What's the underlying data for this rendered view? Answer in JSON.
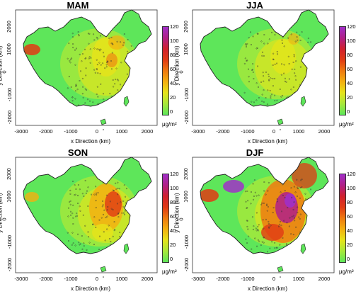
{
  "panels": [
    {
      "title": "MAM",
      "ylabel": "y Direction (km)",
      "xlabel": "x Direction (km)",
      "unit": "μg/m²",
      "colorbar_ticks": [
        "120",
        "100",
        "80",
        "60",
        "40",
        "20",
        "0"
      ],
      "x_ticks": [
        "-3000",
        "-2000",
        "-1000",
        "0",
        "1000",
        "2000"
      ],
      "y_ticks": [
        "2000",
        "1000",
        "0",
        "-1000",
        "-2000"
      ]
    },
    {
      "title": "JJA",
      "ylabel": "y Direction (km)",
      "xlabel": "x Direction (km)",
      "unit": "μg/m²",
      "colorbar_ticks": [
        "120",
        "100",
        "80",
        "60",
        "40",
        "20",
        "0"
      ],
      "x_ticks": [
        "-3000",
        "-2000",
        "-1000",
        "0",
        "1000",
        "2000"
      ],
      "y_ticks": [
        "2000",
        "1000",
        "0",
        "-1000",
        "-2000"
      ]
    },
    {
      "title": "SON",
      "ylabel": "y Direction (km)",
      "xlabel": "x Direction (km)",
      "unit": "μg/m²",
      "colorbar_ticks": [
        "120",
        "100",
        "80",
        "60",
        "40",
        "20",
        "0"
      ],
      "x_ticks": [
        "-3000",
        "-2000",
        "-1000",
        "0",
        "1000",
        "2000"
      ],
      "y_ticks": [
        "2000",
        "1000",
        "0",
        "-1000",
        "-2000"
      ]
    },
    {
      "title": "DJF",
      "ylabel": "y Direction (km)",
      "xlabel": "x Direction (km)",
      "unit": "μg/m²",
      "colorbar_ticks": [
        "120",
        "100",
        "80",
        "60",
        "40",
        "20",
        "0"
      ],
      "x_ticks": [
        "-3000",
        "-2000",
        "-1000",
        "0",
        "1000",
        "2000"
      ],
      "y_ticks": [
        "2000",
        "1000",
        "0",
        "-1000",
        "-2000"
      ]
    }
  ],
  "colorbar_colors": [
    "#5ee65a",
    "#a8e83a",
    "#e6e41a",
    "#f3b010",
    "#ee7a10",
    "#e03a14",
    "#d0202e",
    "#b02088",
    "#a030c8"
  ]
}
